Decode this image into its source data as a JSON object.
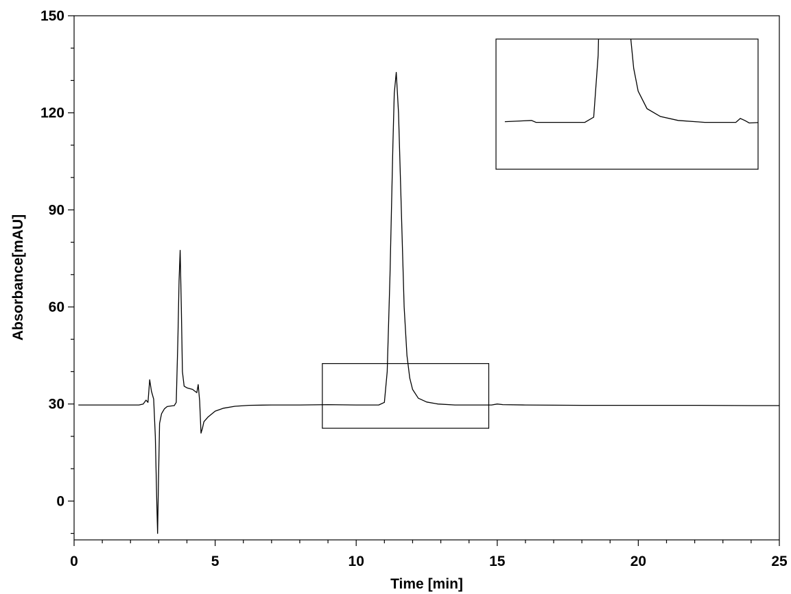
{
  "chart_data": {
    "type": "line",
    "title": "",
    "xlabel": "Time [min]",
    "ylabel": "Absorbance[mAU]",
    "xlim": [
      0,
      25
    ],
    "ylim": [
      -12,
      150
    ],
    "x_ticks": [
      0,
      5,
      10,
      15,
      20,
      25
    ],
    "x_tick_labels": [
      "0",
      "5",
      "10",
      "15",
      "20",
      "25"
    ],
    "y_ticks": [
      0,
      30,
      60,
      90,
      120,
      150
    ],
    "y_tick_labels": [
      "0",
      "30",
      "60",
      "90",
      "120",
      "150"
    ],
    "grid": false,
    "legend": "none",
    "series": [
      {
        "color": "#000000",
        "x": [
          0.15,
          2.3,
          2.45,
          2.55,
          2.62,
          2.68,
          2.74,
          2.82,
          2.88,
          2.93,
          2.96,
          2.99,
          3.03,
          3.1,
          3.2,
          3.3,
          3.45,
          3.55,
          3.62,
          3.68,
          3.72,
          3.76,
          3.8,
          3.84,
          3.9,
          4.0,
          4.2,
          4.35,
          4.4,
          4.45,
          4.47,
          4.5,
          4.55,
          4.6,
          4.75,
          5.0,
          5.3,
          5.7,
          6.2,
          7.0,
          8.0,
          9.0,
          10.0,
          10.8,
          11.0,
          11.1,
          11.2,
          11.3,
          11.35,
          11.42,
          11.5,
          11.6,
          11.7,
          11.8,
          11.9,
          12.0,
          12.2,
          12.5,
          12.9,
          13.5,
          14.0,
          14.8,
          15.0,
          15.2,
          16.0,
          18.0,
          20.0,
          22.0,
          24.0,
          25.0
        ],
        "values": [
          29.7,
          29.7,
          30.0,
          31.2,
          30.5,
          37.5,
          34.0,
          31.5,
          20.0,
          0.0,
          -10.0,
          5.0,
          24.0,
          27.0,
          28.5,
          29.2,
          29.4,
          29.5,
          30.5,
          50.0,
          68.0,
          77.5,
          60.0,
          40.0,
          35.5,
          35.0,
          34.5,
          33.5,
          36.0,
          31.0,
          27.0,
          21.0,
          22.5,
          24.5,
          26.0,
          27.8,
          28.7,
          29.3,
          29.6,
          29.7,
          29.7,
          29.8,
          29.7,
          29.7,
          30.5,
          40.0,
          70.0,
          110.0,
          126.0,
          132.5,
          120.0,
          90.0,
          60.0,
          45.0,
          38.0,
          34.5,
          31.8,
          30.6,
          30.0,
          29.7,
          29.7,
          29.7,
          30.0,
          29.8,
          29.7,
          29.6,
          29.6,
          29.6,
          29.5,
          29.5
        ]
      }
    ],
    "zoom_box": {
      "x_range": [
        8.8,
        14.7
      ],
      "y_range": [
        22.5,
        42.5
      ]
    },
    "inset": {
      "x_range": [
        8.8,
        14.7
      ],
      "y_range": [
        22.5,
        42.5
      ],
      "content": "magnified view of the zoom_box region"
    }
  }
}
